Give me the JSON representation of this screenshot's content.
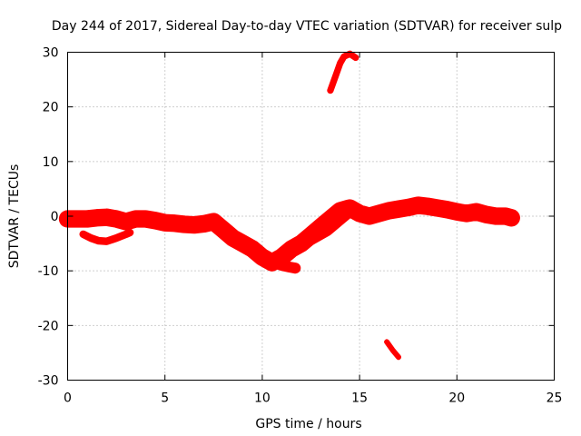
{
  "chart_data": {
    "type": "scatter",
    "title": "Day 244 of 2017, Sidereal Day-to-day VTEC variation (SDTVAR) for receiver sulp",
    "xlabel": "GPS time / hours",
    "ylabel": "SDTVAR / TECUs",
    "xlim": [
      0,
      25
    ],
    "ylim": [
      -30,
      30
    ],
    "xticks": [
      "0",
      "5",
      "10",
      "15",
      "20",
      "25"
    ],
    "yticks": [
      "30",
      "20",
      "10",
      "0",
      "-10",
      "-20",
      "-30"
    ],
    "grid": true,
    "point_color": "#ff0000",
    "series": [
      {
        "name": "main trace",
        "width": 1.6,
        "x": [
          0.0,
          0.5,
          1.0,
          1.5,
          2.0,
          2.5,
          3.0,
          3.5,
          4.0,
          4.5,
          5.0,
          5.5,
          6.0,
          6.5,
          7.0,
          7.5,
          8.0,
          8.5,
          9.0,
          9.5,
          10.0,
          10.5,
          11.0,
          11.5,
          12.0,
          12.5,
          13.0,
          13.5,
          14.0,
          14.5,
          15.0,
          15.5,
          16.0,
          16.5,
          17.0,
          17.5,
          18.0,
          18.5,
          19.0,
          19.5,
          20.0,
          20.5,
          21.0,
          21.5,
          22.0,
          22.5,
          22.8
        ],
        "y": [
          -0.5,
          -0.5,
          -0.5,
          -0.3,
          -0.2,
          -0.5,
          -1.0,
          -0.5,
          -0.5,
          -0.8,
          -1.2,
          -1.3,
          -1.5,
          -1.6,
          -1.4,
          -1.0,
          -2.5,
          -4.0,
          -5.0,
          -6.0,
          -7.5,
          -8.5,
          -7.5,
          -6.0,
          -5.0,
          -3.5,
          -2.0,
          -0.5,
          1.0,
          1.5,
          0.5,
          0.0,
          0.5,
          1.0,
          1.3,
          1.6,
          2.0,
          1.8,
          1.5,
          1.2,
          0.8,
          0.5,
          0.8,
          0.3,
          0.0,
          0.0,
          -0.3
        ]
      },
      {
        "name": "lower arc",
        "width": 0.7,
        "x": [
          0.8,
          1.2,
          1.6,
          2.0,
          2.5,
          3.0,
          3.2
        ],
        "y": [
          -3.3,
          -4.0,
          -4.5,
          -4.6,
          -4.0,
          -3.3,
          -3.0
        ]
      },
      {
        "name": "dip branch",
        "width": 1.0,
        "x": [
          10.2,
          10.6,
          11.0,
          11.4,
          11.7
        ],
        "y": [
          -7.5,
          -8.5,
          -9.0,
          -9.3,
          -9.5
        ]
      },
      {
        "name": "rising branch",
        "width": 1.2,
        "x": [
          10.8,
          11.3,
          11.8,
          12.3,
          12.8,
          13.3,
          13.8,
          14.3,
          14.6
        ],
        "y": [
          -7.5,
          -6.5,
          -5.5,
          -4.5,
          -3.5,
          -2.5,
          -1.0,
          0.5,
          1.5
        ]
      },
      {
        "name": "upper arc",
        "width": 0.6,
        "x": [
          13.5,
          13.8,
          14.0,
          14.2,
          14.5,
          14.8
        ],
        "y": [
          23.0,
          26.0,
          28.0,
          29.2,
          29.7,
          29.0
        ]
      },
      {
        "name": "lower segment",
        "width": 0.5,
        "x": [
          16.4,
          16.7,
          17.0
        ],
        "y": [
          -23.0,
          -24.5,
          -25.8
        ]
      }
    ]
  }
}
